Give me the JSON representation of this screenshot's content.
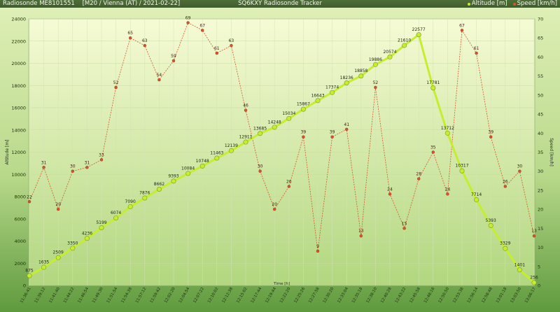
{
  "header": {
    "left_text": "Radiosonde ME8101551    [M20 / Vienna (AT) / 2021-02-22]",
    "center_text": "SQ6KXY Radiosonde Tracker"
  },
  "colors": {
    "altitude": "#c5ee2e",
    "speed": "#d6552a",
    "plot_top": "#f6fbd5",
    "plot_bottom": "#b1d77f"
  },
  "chart_data": {
    "type": "line",
    "xlabel": "Time [h]",
    "ylabel_left": "Altitude [m]",
    "ylabel_right": "Speed [km/h]",
    "ylim_left": [
      0,
      24000
    ],
    "ylim_right": [
      0,
      70
    ],
    "yticks_left": [
      0,
      2000,
      4000,
      6000,
      8000,
      10000,
      12000,
      14000,
      16000,
      18000,
      20000,
      22000,
      24000
    ],
    "yticks_right": [
      0,
      5,
      10,
      15,
      20,
      25,
      30,
      35,
      40,
      45,
      50,
      55,
      60,
      65,
      70
    ],
    "grid": true,
    "legend": "top-right",
    "categories": [
      "11:36:41",
      "11:39:12",
      "11:41:40",
      "11:44:22",
      "11:46:54",
      "11:49:30",
      "11:51:54",
      "11:54:38",
      "11:57:12",
      "11:59:42",
      "12:02:20",
      "12:04:54",
      "12:07:22",
      "12:10:02",
      "12:12:38",
      "12:15:02",
      "12:17:44",
      "12:19:44",
      "12:22:20",
      "12:25:26",
      "12:27:58",
      "12:30:20",
      "12:33:04",
      "12:35:18",
      "12:38:10",
      "12:40:28",
      "12:43:22",
      "12:45:58",
      "12:48:16",
      "12:50:50",
      "12:53:38",
      "12:56:14",
      "12:58:48",
      "13:01:18",
      "13:03:50",
      "13:06:17"
    ],
    "series": [
      {
        "name": "Altitude [m]",
        "axis": "left",
        "values": [
          875,
          1635,
          2509,
          3350,
          4236,
          5199,
          6074,
          7090,
          7876,
          8662,
          9393,
          10084,
          10748,
          11463,
          12139,
          12911,
          13685,
          14248,
          15034,
          15867,
          16643,
          17374,
          18236,
          18858,
          19886,
          20574,
          21610,
          22577,
          17781,
          13712,
          10317,
          7714,
          5393,
          3329,
          1401,
          256
        ]
      },
      {
        "name": "Speed [km/h]",
        "axis": "right",
        "values": [
          22,
          31,
          20,
          30,
          31,
          33,
          52,
          65,
          63,
          54,
          59,
          69,
          67,
          61,
          63,
          46,
          30,
          20,
          26,
          39,
          9,
          39,
          41,
          13,
          52,
          24,
          15,
          28,
          35,
          24,
          67,
          61,
          39,
          26,
          30,
          13
        ]
      }
    ]
  }
}
